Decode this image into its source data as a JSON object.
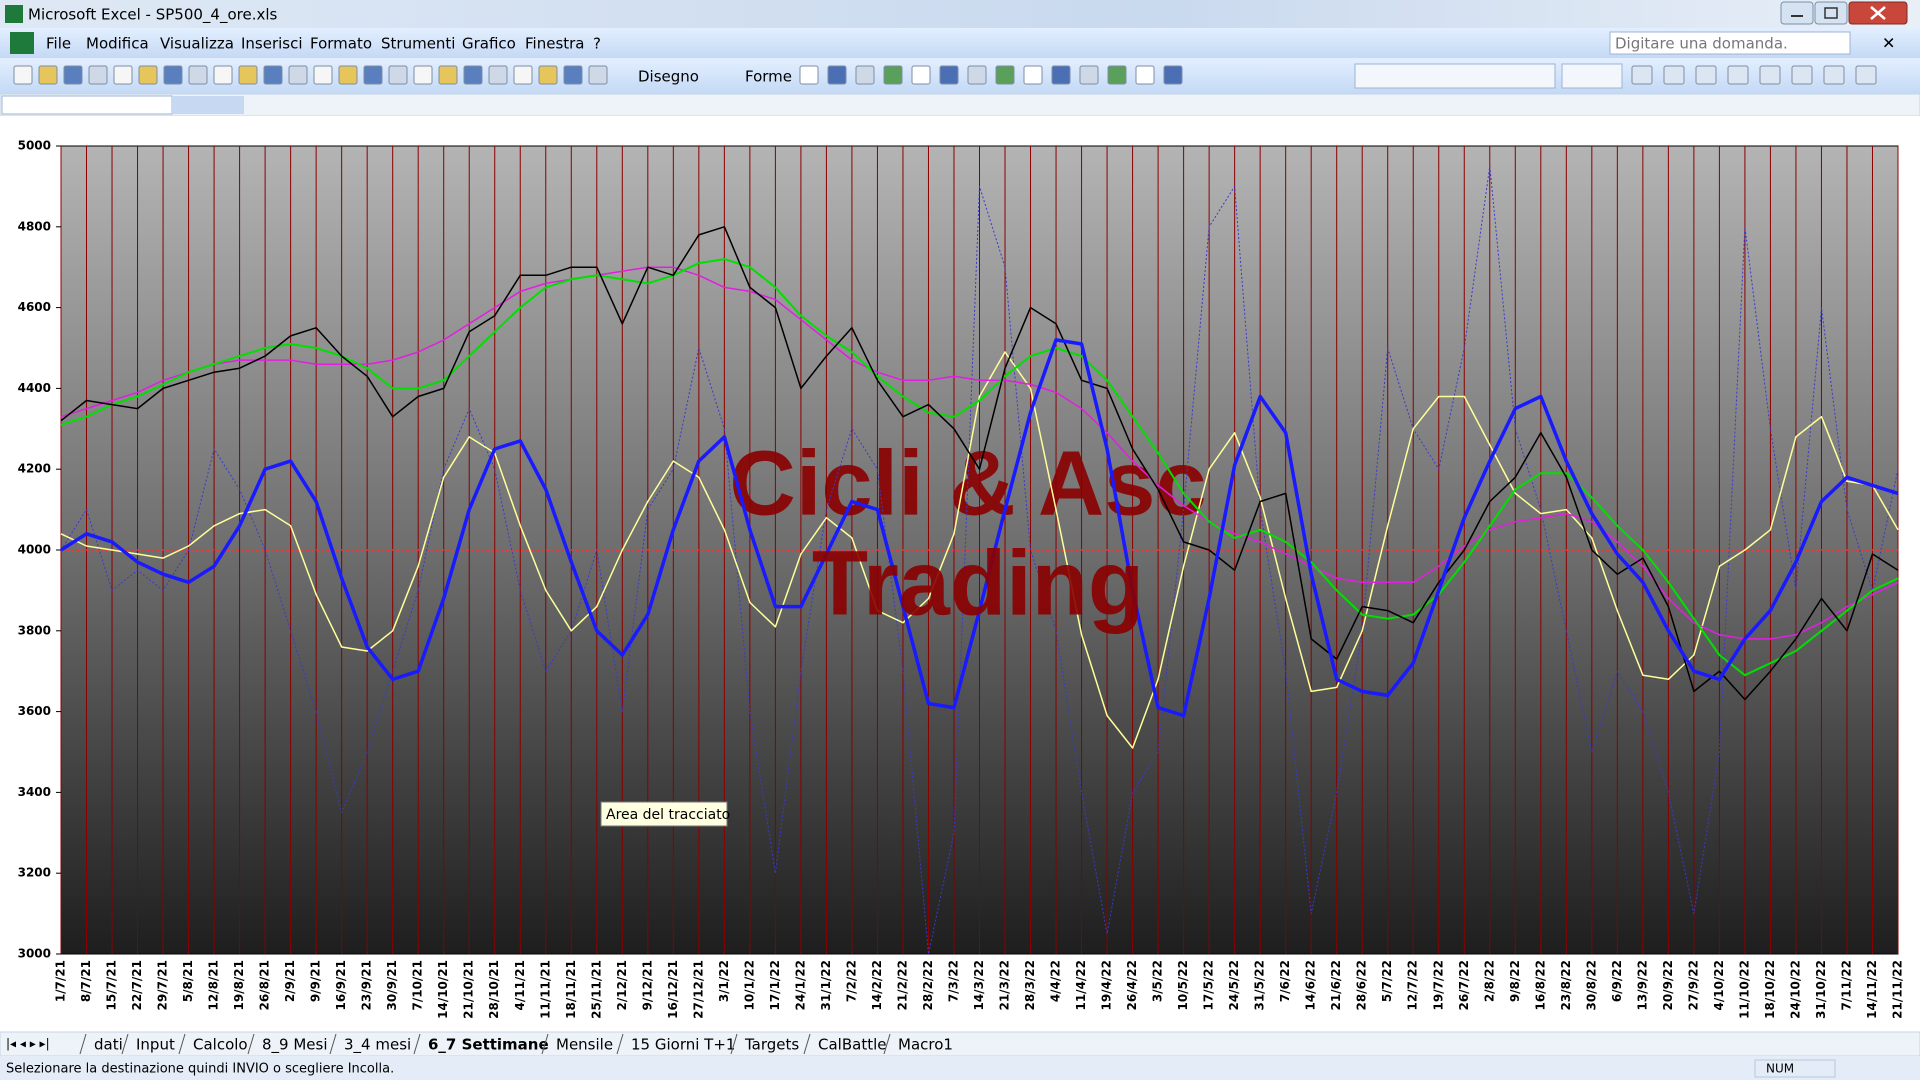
{
  "window": {
    "title": "Microsoft Excel - SP500_4_ore.xls"
  },
  "menu": [
    "File",
    "Modifica",
    "Visualizza",
    "Inserisci",
    "Formato",
    "Strumenti",
    "Grafico",
    "Finestra",
    "?"
  ],
  "help_box": "Digitare una domanda.",
  "toolbar": {
    "drawing": "Disegno",
    "shapes": "Forme"
  },
  "sheet_tabs": [
    "dati",
    "Input",
    "Calcolo",
    "8_9 Mesi",
    "3_4 mesi",
    "6_7 Settimane",
    "Mensile",
    "15 Giorni T+1",
    "Targets",
    "CalBattle",
    "Macro1"
  ],
  "active_tab": 5,
  "tooltip": "Area del tracciato",
  "status": {
    "message": "Selezionare la destinazione quindi INVIO o scegliere Incolla.",
    "num": "NUM"
  },
  "chart_data": {
    "type": "line",
    "annotations": [
      "Cicli & Asc",
      "Trading"
    ],
    "categories": [
      "1/7/21",
      "8/7/21",
      "15/7/21",
      "22/7/21",
      "29/7/21",
      "5/8/21",
      "12/8/21",
      "19/8/21",
      "26/8/21",
      "2/9/21",
      "9/9/21",
      "16/9/21",
      "23/9/21",
      "30/9/21",
      "7/10/21",
      "14/10/21",
      "21/10/21",
      "28/10/21",
      "4/11/21",
      "11/11/21",
      "18/11/21",
      "25/11/21",
      "2/12/21",
      "9/12/21",
      "16/12/21",
      "27/12/21",
      "3/1/22",
      "10/1/22",
      "17/1/22",
      "24/1/22",
      "31/1/22",
      "7/2/22",
      "14/2/22",
      "21/2/22",
      "28/2/22",
      "7/3/22",
      "14/3/22",
      "21/3/22",
      "28/3/22",
      "4/4/22",
      "11/4/22",
      "19/4/22",
      "26/4/22",
      "3/5/22",
      "10/5/22",
      "17/5/22",
      "24/5/22",
      "31/5/22",
      "7/6/22",
      "14/6/22",
      "21/6/22",
      "28/6/22",
      "5/7/22",
      "12/7/22",
      "19/7/22",
      "26/7/22",
      "2/8/22",
      "9/8/22",
      "16/8/22",
      "23/8/22",
      "30/8/22",
      "6/9/22",
      "13/9/22",
      "20/9/22",
      "27/9/22",
      "4/10/22",
      "11/10/22",
      "18/10/22",
      "24/10/22",
      "31/10/22",
      "7/11/22",
      "14/11/22",
      "21/11/22"
    ],
    "ylim": [
      3000,
      5000
    ],
    "yticks": [
      3000,
      3200,
      3400,
      3600,
      3800,
      4000,
      4200,
      4400,
      4600,
      4800,
      5000
    ],
    "reference_line": {
      "value": 4000,
      "color": "#ff3030"
    },
    "grid_color": "#8b0000",
    "series": [
      {
        "color": "#3a3acc",
        "width": 1,
        "dash": true,
        "values": [
          4000,
          4100,
          3900,
          3950,
          3900,
          4000,
          4250,
          4150,
          4000,
          3800,
          3600,
          3350,
          3500,
          3700,
          3900,
          4200,
          4350,
          4200,
          3900,
          3700,
          3800,
          4000,
          3600,
          4100,
          4200,
          4500,
          4300,
          3600,
          3200,
          3700,
          4100,
          4300,
          4200,
          3700,
          3000,
          3300,
          4900,
          4700,
          4000,
          3800,
          3400,
          3050,
          3400,
          3500,
          4100,
          4800,
          4900,
          4100,
          3700,
          3100,
          3400,
          3800,
          4500,
          4300,
          4200,
          4500,
          4950,
          4300,
          4100,
          3800,
          3500,
          3700,
          3600,
          3400,
          3100,
          3500,
          4800,
          4300,
          3900,
          4600,
          4100,
          3900,
          4200
        ]
      },
      {
        "color": "#ffff99",
        "width": 1.5,
        "dash": false,
        "values": [
          4040,
          4010,
          4000,
          3990,
          3980,
          4010,
          4060,
          4090,
          4100,
          4060,
          3890,
          3760,
          3750,
          3800,
          3960,
          4180,
          4280,
          4240,
          4060,
          3900,
          3800,
          3860,
          4000,
          4120,
          4220,
          4180,
          4050,
          3870,
          3810,
          3990,
          4080,
          4030,
          3850,
          3820,
          3880,
          4040,
          4380,
          4490,
          4400,
          4100,
          3790,
          3590,
          3510,
          3680,
          3960,
          4200,
          4290,
          4130,
          3880,
          3650,
          3660,
          3800,
          4060,
          4300,
          4380,
          4380,
          4260,
          4140,
          4090,
          4100,
          4030,
          3850,
          3690,
          3680,
          3740,
          3960,
          4000,
          4050,
          4280,
          4330,
          4170,
          4160,
          4050
        ]
      },
      {
        "color": "#e020e0",
        "width": 1.5,
        "dash": false,
        "values": [
          4330,
          4350,
          4370,
          4390,
          4420,
          4440,
          4460,
          4470,
          4470,
          4470,
          4460,
          4460,
          4460,
          4470,
          4490,
          4520,
          4560,
          4600,
          4640,
          4660,
          4670,
          4680,
          4690,
          4700,
          4700,
          4680,
          4650,
          4640,
          4620,
          4570,
          4520,
          4470,
          4440,
          4420,
          4420,
          4430,
          4420,
          4420,
          4410,
          4390,
          4350,
          4290,
          4220,
          4160,
          4110,
          4070,
          4040,
          4020,
          3990,
          3960,
          3930,
          3920,
          3920,
          3920,
          3960,
          4010,
          4050,
          4070,
          4080,
          4090,
          4070,
          4020,
          3960,
          3880,
          3820,
          3790,
          3780,
          3780,
          3790,
          3820,
          3860,
          3890,
          3920
        ]
      },
      {
        "color": "#00e000",
        "width": 2,
        "dash": false,
        "values": [
          4310,
          4330,
          4360,
          4380,
          4410,
          4440,
          4460,
          4480,
          4500,
          4510,
          4500,
          4480,
          4450,
          4400,
          4400,
          4420,
          4480,
          4540,
          4600,
          4650,
          4670,
          4680,
          4670,
          4660,
          4680,
          4710,
          4720,
          4700,
          4650,
          4580,
          4530,
          4490,
          4430,
          4380,
          4340,
          4330,
          4370,
          4430,
          4480,
          4500,
          4480,
          4420,
          4330,
          4240,
          4140,
          4070,
          4030,
          4050,
          4020,
          3970,
          3900,
          3840,
          3830,
          3840,
          3890,
          3970,
          4060,
          4150,
          4190,
          4190,
          4130,
          4060,
          4000,
          3920,
          3830,
          3740,
          3690,
          3720,
          3750,
          3800,
          3850,
          3900,
          3930
        ]
      },
      {
        "color": "#000000",
        "width": 1.5,
        "dash": false,
        "values": [
          4320,
          4370,
          4360,
          4350,
          4400,
          4420,
          4440,
          4450,
          4480,
          4530,
          4550,
          4480,
          4430,
          4330,
          4380,
          4400,
          4540,
          4580,
          4680,
          4680,
          4700,
          4700,
          4560,
          4700,
          4680,
          4780,
          4800,
          4650,
          4600,
          4400,
          4480,
          4550,
          4420,
          4330,
          4360,
          4300,
          4200,
          4450,
          4600,
          4560,
          4420,
          4400,
          4250,
          4150,
          4020,
          4000,
          3950,
          4120,
          4140,
          3780,
          3730,
          3860,
          3850,
          3820,
          3920,
          4000,
          4120,
          4180,
          4290,
          4180,
          4000,
          3940,
          3980,
          3860,
          3650,
          3700,
          3630,
          3700,
          3780,
          3880,
          3800,
          3990,
          3950
        ]
      },
      {
        "color": "#1a1aff",
        "width": 3.5,
        "dash": false,
        "values": [
          4000,
          4040,
          4020,
          3970,
          3940,
          3920,
          3960,
          4060,
          4200,
          4220,
          4120,
          3930,
          3760,
          3680,
          3700,
          3880,
          4100,
          4250,
          4270,
          4150,
          3970,
          3800,
          3740,
          3840,
          4050,
          4220,
          4280,
          4050,
          3860,
          3860,
          3990,
          4120,
          4100,
          3860,
          3620,
          3610,
          3850,
          4100,
          4340,
          4520,
          4510,
          4250,
          3900,
          3610,
          3590,
          3880,
          4210,
          4380,
          4290,
          3940,
          3680,
          3650,
          3640,
          3720,
          3900,
          4080,
          4220,
          4350,
          4380,
          4220,
          4090,
          3990,
          3920,
          3800,
          3700,
          3680,
          3780,
          3850,
          3970,
          4120,
          4180,
          4160,
          4140
        ]
      }
    ]
  }
}
